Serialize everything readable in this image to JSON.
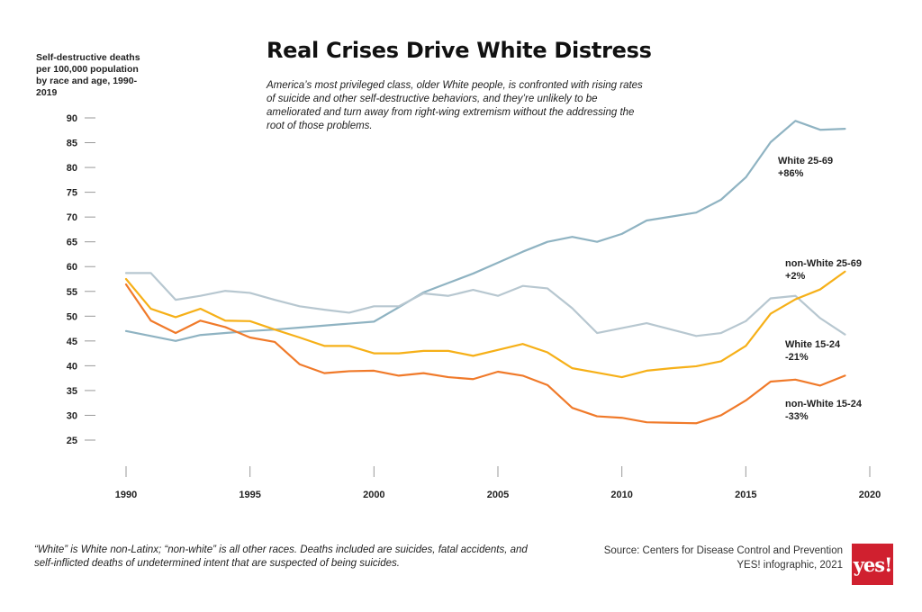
{
  "header": {
    "title": "Real Crises Drive White Distress",
    "subtitle": "America’s most privileged class, older White people, is confronted with rising rates of suicide and other self-destructive behaviors, and they’re unlikely to be ameliorated and turn away from right-wing extremism without the addressing the root of those problems."
  },
  "footer": {
    "note": "“White” is White non-Latinx; “non-white” is all other races. Deaths included are suicides, fatal accidents, and self-inflicted deaths of undetermined intent that are suspected of being suicides.",
    "source": "Source: Centers for Disease Control and Prevention",
    "credit": "YES! infographic, 2021",
    "logo_text": "yes!"
  },
  "chart_data": {
    "type": "line",
    "title": "Real Crises Drive White Distress",
    "ylabel": "Self-destructive deaths per 100,000 population by race and age, 1990-2019",
    "xlabel": "",
    "xlim": [
      1990,
      2020
    ],
    "ylim": [
      25,
      90
    ],
    "x_ticks": [
      1990,
      1995,
      2000,
      2005,
      2010,
      2015,
      2020
    ],
    "y_ticks": [
      25,
      30,
      35,
      40,
      45,
      50,
      55,
      60,
      65,
      70,
      75,
      80,
      85,
      90
    ],
    "grid": false,
    "x": [
      1990,
      1991,
      1992,
      1993,
      1994,
      1995,
      1996,
      1997,
      1998,
      1999,
      2000,
      2001,
      2002,
      2003,
      2004,
      2005,
      2006,
      2007,
      2008,
      2009,
      2010,
      2011,
      2012,
      2013,
      2014,
      2015,
      2016,
      2017,
      2018,
      2019
    ],
    "series": [
      {
        "name": "White 25-69",
        "change": "+86%",
        "color": "#8fb3c2",
        "values": [
          47,
          46,
          45,
          46.2,
          46.6,
          47,
          47.3,
          47.7,
          48.1,
          48.5,
          48.9,
          51.8,
          54.8,
          56.7,
          58.6,
          60.8,
          63,
          65,
          66,
          65,
          66.6,
          69.3,
          70.1,
          70.9,
          73.5,
          78,
          85.1,
          89.4,
          87.6,
          87.8
        ]
      },
      {
        "name": "White 15-24",
        "change": "-21%",
        "color": "#b7c7d0",
        "values": [
          58.7,
          58.7,
          53.3,
          54.1,
          55.1,
          54.7,
          53.3,
          52.0,
          51.3,
          50.7,
          52.0,
          52.0,
          54.6,
          54.1,
          55.3,
          54.1,
          56.1,
          55.6,
          51.6,
          46.6,
          47.6,
          48.6,
          47.3,
          46.0,
          46.6,
          49.0,
          53.6,
          54.1,
          49.6,
          46.3
        ]
      },
      {
        "name": "non-White 25-69",
        "change": "+2%",
        "color": "#f6b018",
        "values": [
          57.5,
          51.5,
          49.8,
          51.5,
          49.1,
          49.0,
          47.3,
          45.7,
          44.0,
          44.0,
          42.5,
          42.5,
          43.0,
          43.0,
          42.0,
          43.2,
          44.4,
          42.7,
          39.5,
          38.6,
          37.7,
          39.0,
          39.5,
          39.9,
          40.9,
          44.0,
          50.5,
          53.4,
          55.4,
          59.0
        ]
      },
      {
        "name": "non-White 15-24",
        "change": "-33%",
        "color": "#f07a2a",
        "values": [
          56.4,
          49.1,
          46.6,
          49.1,
          47.8,
          45.7,
          44.8,
          40.3,
          38.5,
          38.9,
          39.0,
          38.0,
          38.5,
          37.7,
          37.3,
          38.8,
          38.0,
          36.1,
          31.5,
          29.8,
          29.5,
          28.6,
          28.5,
          28.4,
          30.0,
          33.0,
          36.8,
          37.2,
          36.0,
          38.0
        ]
      }
    ],
    "labels": [
      {
        "series": "White 25-69",
        "line1": "White 25-69",
        "line2": "+86%"
      },
      {
        "series": "non-White 25-69",
        "line1": "non-White 25-69",
        "line2": "+2%"
      },
      {
        "series": "White 15-24",
        "line1": "White 15-24",
        "line2": "-21%"
      },
      {
        "series": "non-White 15-24",
        "line1": "non-White 15-24",
        "line2": "-33%"
      }
    ]
  }
}
